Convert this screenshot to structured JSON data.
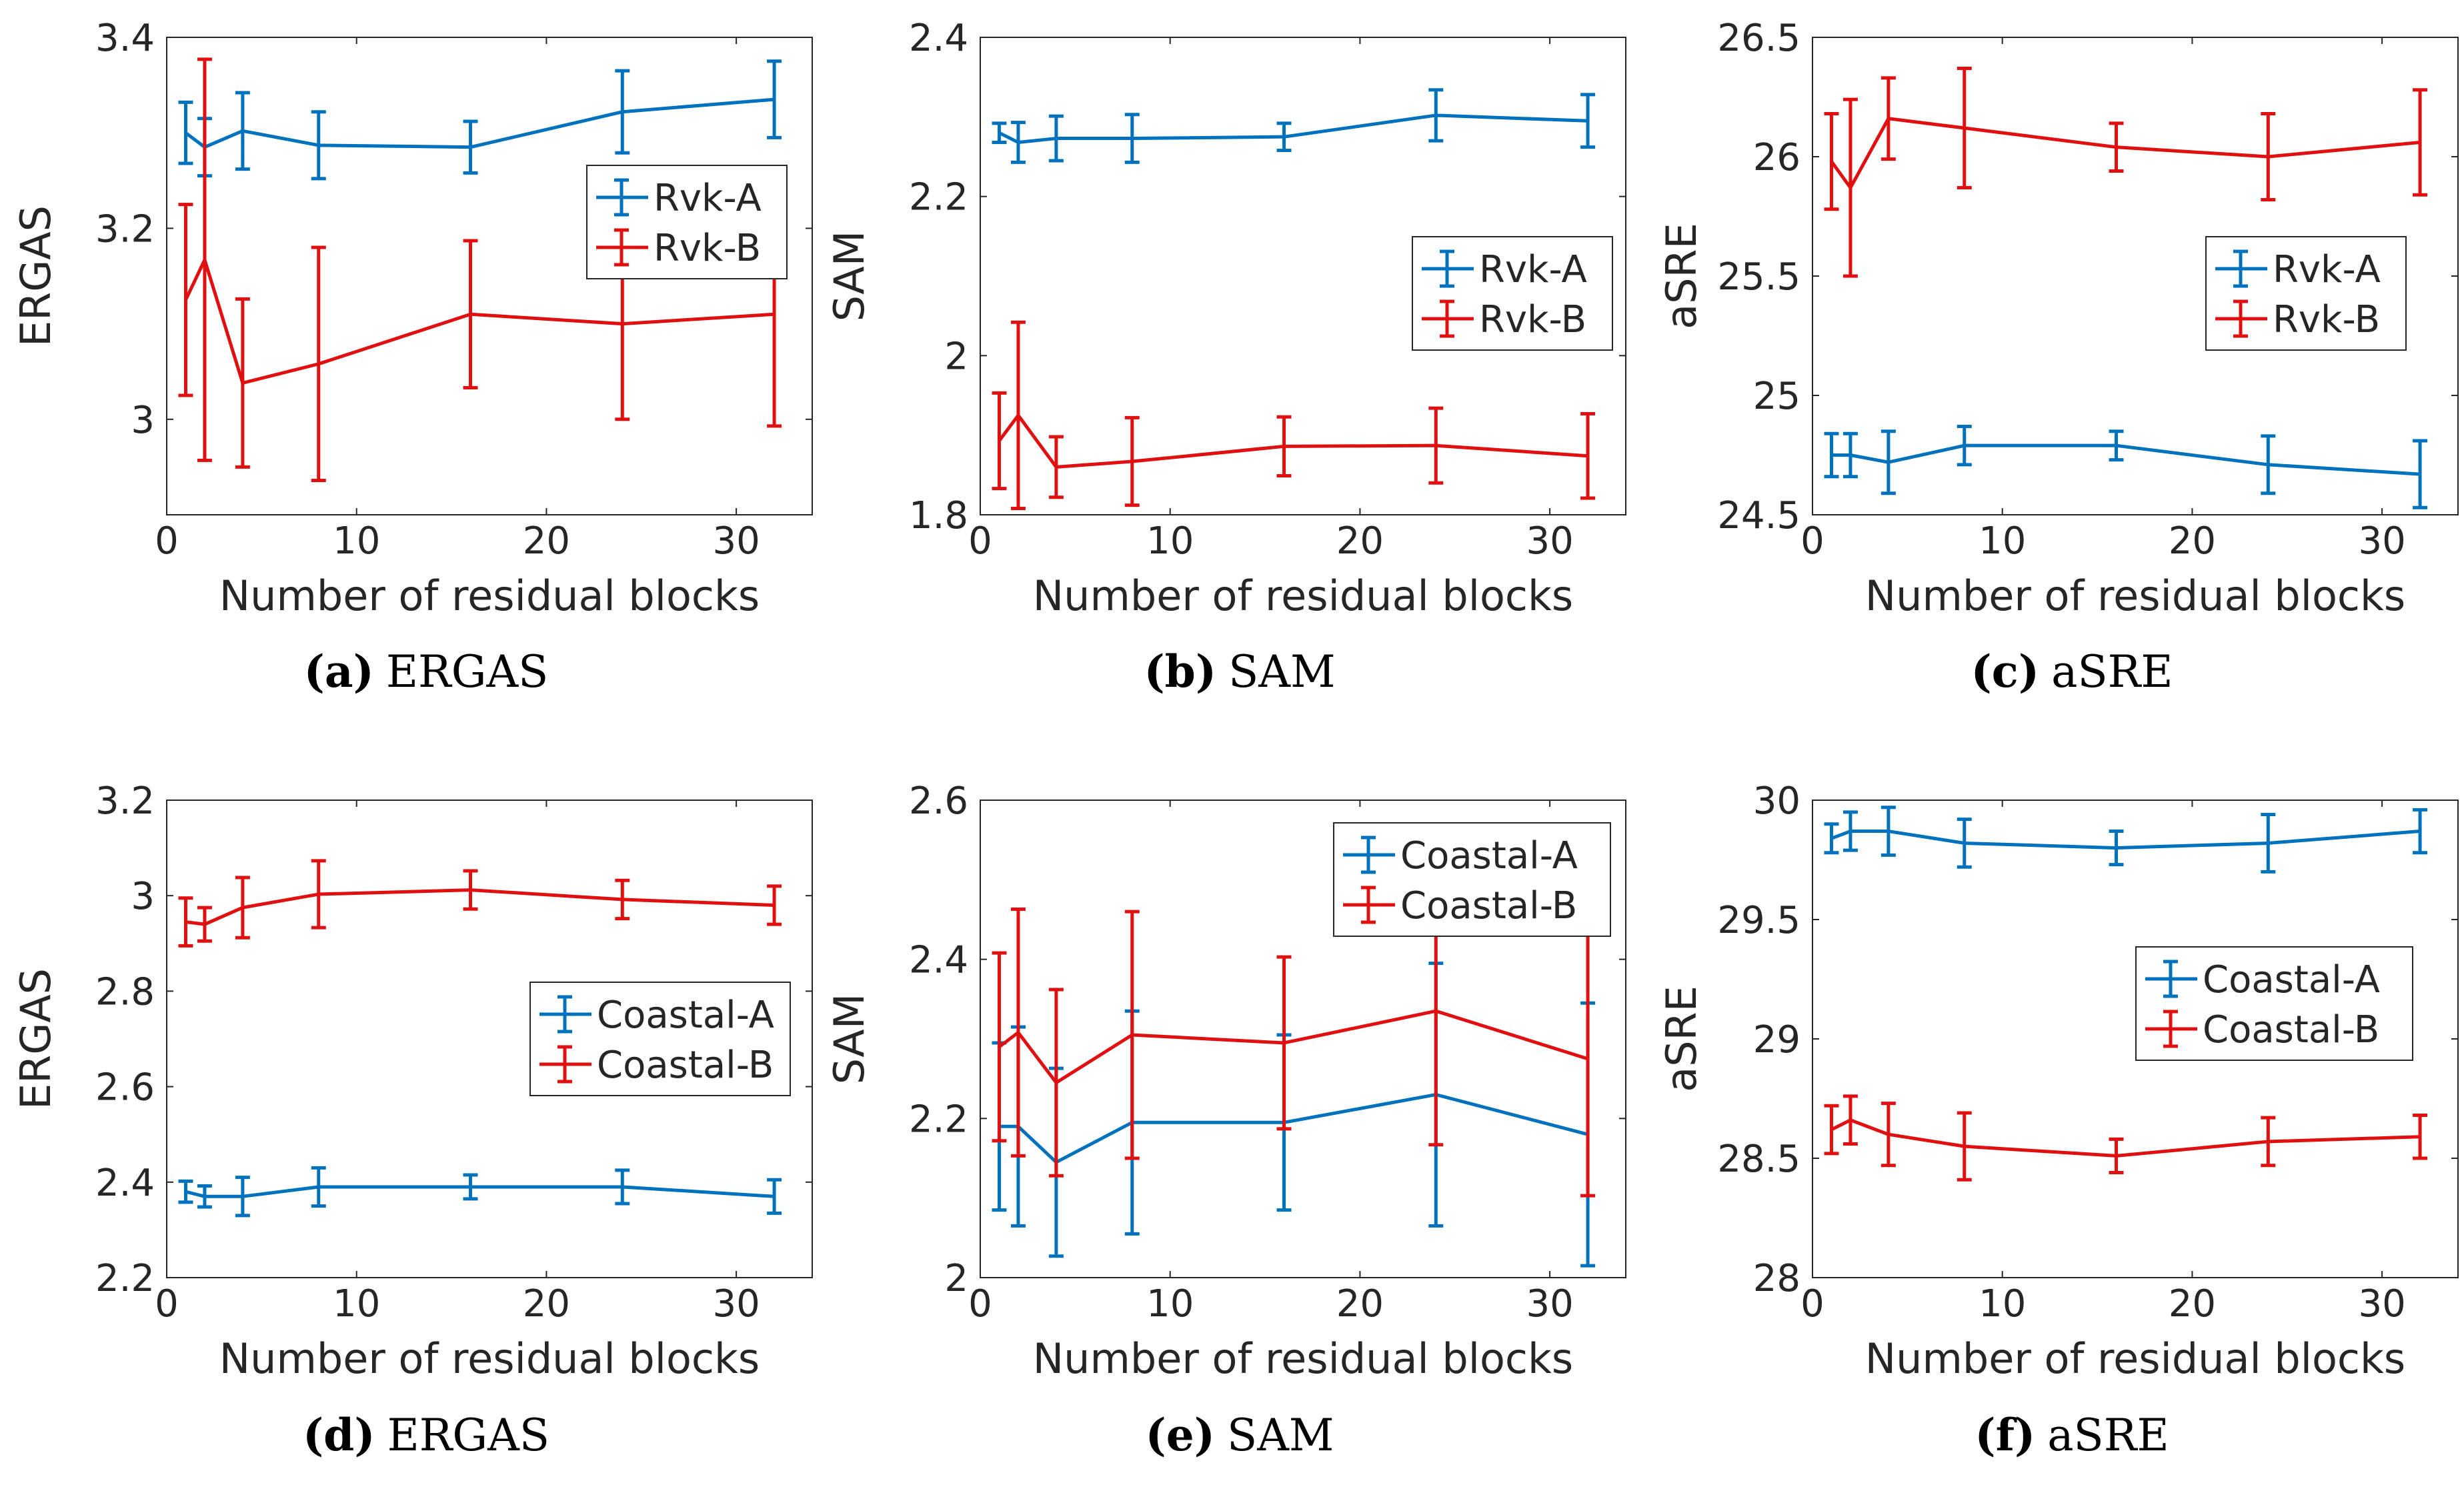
{
  "colors": {
    "blue": "#0072BD",
    "red": "#E01010",
    "axis": "#262626"
  },
  "chart_data": [
    {
      "type": "line",
      "caption_letter": "(a)",
      "caption_text": "ERGAS",
      "xlabel": "Number of residual blocks",
      "ylabel": "ERGAS",
      "xlim": [
        0,
        34
      ],
      "ylim": [
        2.9,
        3.4
      ],
      "xticks": [
        0,
        10,
        20,
        30
      ],
      "xtick_labels": [
        "0",
        "10",
        "20",
        "30"
      ],
      "yticks": [
        3,
        3.2,
        3.4
      ],
      "ytick_labels": [
        "3",
        "3.2",
        "3.4"
      ],
      "legend_loc": "right-upper",
      "x": [
        1,
        2,
        4,
        8,
        16,
        24,
        32
      ],
      "series": [
        {
          "name": "Rvk-A",
          "color": "blue",
          "values": [
            3.3,
            3.285,
            3.302,
            3.287,
            3.285,
            3.322,
            3.335
          ],
          "errors": [
            0.032,
            0.03,
            0.04,
            0.035,
            0.027,
            0.043,
            0.04
          ]
        },
        {
          "name": "Rvk-B",
          "color": "red",
          "values": [
            3.125,
            3.167,
            3.038,
            3.058,
            3.11,
            3.1,
            3.11
          ],
          "errors": [
            0.1,
            0.21,
            0.088,
            0.122,
            0.077,
            0.1,
            0.117
          ]
        }
      ]
    },
    {
      "type": "line",
      "caption_letter": "(b)",
      "caption_text": "SAM",
      "xlabel": "Number of residual blocks",
      "ylabel": "SAM",
      "xlim": [
        0,
        34
      ],
      "ylim": [
        1.8,
        2.4
      ],
      "xticks": [
        0,
        10,
        20,
        30
      ],
      "xtick_labels": [
        "0",
        "10",
        "20",
        "30"
      ],
      "yticks": [
        1.8,
        2,
        2.2,
        2.4
      ],
      "ytick_labels": [
        "1.8",
        "2",
        "2.2",
        "2.4"
      ],
      "legend_loc": "right-middle",
      "x": [
        1,
        2,
        4,
        8,
        16,
        24,
        32
      ],
      "series": [
        {
          "name": "Rvk-A",
          "color": "blue",
          "values": [
            2.28,
            2.268,
            2.273,
            2.273,
            2.275,
            2.302,
            2.295
          ],
          "errors": [
            0.012,
            0.025,
            0.028,
            0.03,
            0.017,
            0.032,
            0.033
          ]
        },
        {
          "name": "Rvk-B",
          "color": "red",
          "values": [
            1.893,
            1.925,
            1.86,
            1.867,
            1.886,
            1.887,
            1.874
          ],
          "errors": [
            0.06,
            0.117,
            0.038,
            0.055,
            0.037,
            0.047,
            0.053
          ]
        }
      ]
    },
    {
      "type": "line",
      "caption_letter": "(c)",
      "caption_text": "aSRE",
      "xlabel": "Number of residual blocks",
      "ylabel": "aSRE",
      "xlim": [
        0,
        34
      ],
      "ylim": [
        24.5,
        26.5
      ],
      "xticks": [
        0,
        10,
        20,
        30
      ],
      "xtick_labels": [
        "0",
        "10",
        "20",
        "30"
      ],
      "yticks": [
        24.5,
        25,
        25.5,
        26,
        26.5
      ],
      "ytick_labels": [
        "24.5",
        "25",
        "25.5",
        "26",
        "26.5"
      ],
      "legend_loc": "right-middle",
      "x": [
        1,
        2,
        4,
        8,
        16,
        24,
        32
      ],
      "series": [
        {
          "name": "Rvk-A",
          "color": "blue",
          "values": [
            24.75,
            24.75,
            24.72,
            24.79,
            24.79,
            24.71,
            24.67
          ],
          "errors": [
            0.09,
            0.09,
            0.13,
            0.08,
            0.06,
            0.12,
            0.14
          ]
        },
        {
          "name": "Rvk-B",
          "color": "red",
          "values": [
            25.98,
            25.87,
            26.16,
            26.12,
            26.04,
            26.0,
            26.06
          ],
          "errors": [
            0.2,
            0.37,
            0.17,
            0.25,
            0.1,
            0.18,
            0.22
          ]
        }
      ]
    },
    {
      "type": "line",
      "caption_letter": "(d)",
      "caption_text": "ERGAS",
      "xlabel": "Number of residual blocks",
      "ylabel": "ERGAS",
      "xlim": [
        0,
        34
      ],
      "ylim": [
        2.2,
        3.2
      ],
      "xticks": [
        0,
        10,
        20,
        30
      ],
      "xtick_labels": [
        "0",
        "10",
        "20",
        "30"
      ],
      "yticks": [
        2.2,
        2.4,
        2.6,
        2.8,
        3,
        3.2
      ],
      "ytick_labels": [
        "2.2",
        "2.4",
        "2.6",
        "2.8",
        "3",
        "3.2"
      ],
      "legend_loc": "right-middle",
      "x": [
        1,
        2,
        4,
        8,
        16,
        24,
        32
      ],
      "series": [
        {
          "name": "Coastal-A",
          "color": "blue",
          "values": [
            2.38,
            2.37,
            2.37,
            2.39,
            2.39,
            2.39,
            2.37
          ],
          "errors": [
            0.022,
            0.022,
            0.04,
            0.04,
            0.025,
            0.035,
            0.035
          ]
        },
        {
          "name": "Coastal-B",
          "color": "red",
          "values": [
            2.945,
            2.94,
            2.975,
            3.003,
            3.012,
            2.992,
            2.98
          ],
          "errors": [
            0.05,
            0.035,
            0.063,
            0.07,
            0.04,
            0.04,
            0.04
          ]
        }
      ]
    },
    {
      "type": "line",
      "caption_letter": "(e)",
      "caption_text": "SAM",
      "xlabel": "Number of residual blocks",
      "ylabel": "SAM",
      "xlim": [
        0,
        34
      ],
      "ylim": [
        2.0,
        2.6
      ],
      "xticks": [
        0,
        10,
        20,
        30
      ],
      "xtick_labels": [
        "0",
        "10",
        "20",
        "30"
      ],
      "yticks": [
        2,
        2.2,
        2.4,
        2.6
      ],
      "ytick_labels": [
        "2",
        "2.2",
        "2.4",
        "2.6"
      ],
      "legend_loc": "top-right",
      "x": [
        1,
        2,
        4,
        8,
        16,
        24,
        32
      ],
      "series": [
        {
          "name": "Coastal-A",
          "color": "blue",
          "values": [
            2.19,
            2.19,
            2.145,
            2.195,
            2.195,
            2.23,
            2.18
          ],
          "errors": [
            0.105,
            0.125,
            0.118,
            0.14,
            0.11,
            0.165,
            0.165
          ]
        },
        {
          "name": "Coastal-B",
          "color": "red",
          "values": [
            2.29,
            2.308,
            2.245,
            2.305,
            2.295,
            2.335,
            2.275
          ],
          "errors": [
            0.118,
            0.155,
            0.117,
            0.155,
            0.108,
            0.168,
            0.172
          ]
        }
      ]
    },
    {
      "type": "line",
      "caption_letter": "(f)",
      "caption_text": "aSRE",
      "xlabel": "Number of residual blocks",
      "ylabel": "aSRE",
      "xlim": [
        0,
        34
      ],
      "ylim": [
        28,
        30
      ],
      "xticks": [
        0,
        10,
        20,
        30
      ],
      "xtick_labels": [
        "0",
        "10",
        "20",
        "30"
      ],
      "yticks": [
        28,
        28.5,
        29,
        29.5,
        30
      ],
      "ytick_labels": [
        "28",
        "28.5",
        "29",
        "29.5",
        "30"
      ],
      "legend_loc": "right-middle",
      "x": [
        1,
        2,
        4,
        8,
        16,
        24,
        32
      ],
      "series": [
        {
          "name": "Coastal-A",
          "color": "blue",
          "values": [
            29.84,
            29.87,
            29.87,
            29.82,
            29.8,
            29.82,
            29.87
          ],
          "errors": [
            0.06,
            0.08,
            0.1,
            0.1,
            0.07,
            0.12,
            0.09
          ]
        },
        {
          "name": "Coastal-B",
          "color": "red",
          "values": [
            28.62,
            28.66,
            28.6,
            28.55,
            28.51,
            28.57,
            28.59
          ],
          "errors": [
            0.1,
            0.1,
            0.13,
            0.14,
            0.07,
            0.1,
            0.09
          ]
        }
      ]
    }
  ]
}
